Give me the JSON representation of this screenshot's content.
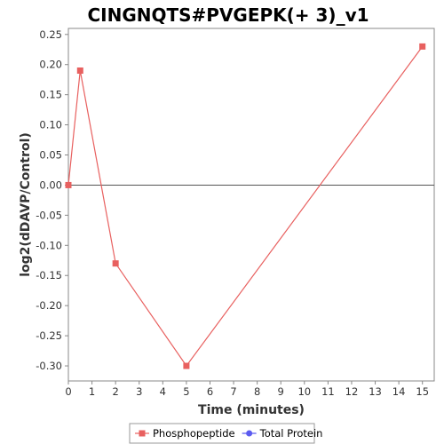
{
  "chart_data": {
    "type": "line",
    "title": "CINGNQTS#PVGEPK(+ 3)_v1",
    "xlabel": "Time (minutes)",
    "ylabel": "log2(dDAVP/Control)",
    "xlim": [
      0,
      15.5
    ],
    "ylim": [
      -0.325,
      0.26
    ],
    "xticks": [
      0,
      1,
      2,
      3,
      4,
      5,
      6,
      7,
      8,
      9,
      10,
      11,
      12,
      13,
      14,
      15
    ],
    "xtick_labels": [
      "0",
      "1",
      "2",
      "3",
      "4",
      "5",
      "6",
      "7",
      "8",
      "9",
      "10",
      "11",
      "12",
      "13",
      "14",
      "15"
    ],
    "yticks": [
      -0.3,
      -0.25,
      -0.2,
      -0.15,
      -0.1,
      -0.05,
      0.0,
      0.05,
      0.1,
      0.15,
      0.2,
      0.25
    ],
    "ytick_labels": [
      "-0.30",
      "-0.25",
      "-0.20",
      "-0.15",
      "-0.10",
      "-0.05",
      "0.00",
      "0.05",
      "0.10",
      "0.15",
      "0.20",
      "0.25"
    ],
    "grid": false,
    "zero_line": true,
    "legend_position": "bottom",
    "series": [
      {
        "name": "Phosphopeptide",
        "color": "#e8605f",
        "marker": "square",
        "x": [
          0,
          0.5,
          2,
          5,
          15
        ],
        "y": [
          0.0,
          0.19,
          -0.13,
          -0.3,
          0.23
        ]
      },
      {
        "name": "Total Protein",
        "color": "#5b5bf0",
        "marker": "circle",
        "x": [],
        "y": []
      }
    ]
  }
}
